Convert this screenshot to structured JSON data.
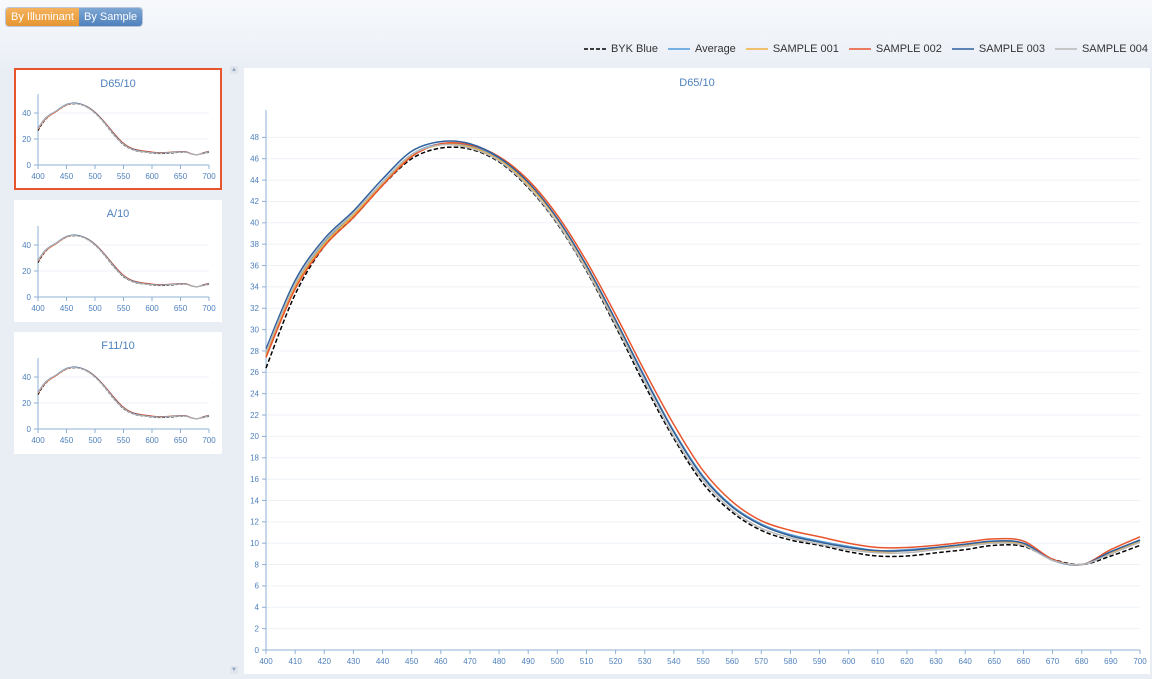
{
  "toolbar": {
    "by_illuminant_label": "By Illuminant",
    "by_sample_label": "By Sample"
  },
  "legend": [
    {
      "name": "BYK Blue",
      "color": "#000000",
      "dash": true
    },
    {
      "name": "Average",
      "color": "#4f9be0",
      "dash": false
    },
    {
      "name": "SAMPLE 001",
      "color": "#f0b040",
      "dash": false
    },
    {
      "name": "SAMPLE 002",
      "color": "#e8542c",
      "dash": false
    },
    {
      "name": "SAMPLE 003",
      "color": "#2d5f9e",
      "dash": false
    },
    {
      "name": "SAMPLE 004",
      "color": "#b8b8b8",
      "dash": false
    }
  ],
  "thumbnails": [
    {
      "title": "D65/10",
      "selected": true
    },
    {
      "title": "A/10",
      "selected": false
    },
    {
      "title": "F11/10",
      "selected": false
    }
  ],
  "thumb_axis": {
    "x_ticks": [
      400,
      450,
      500,
      550,
      600,
      650,
      700
    ],
    "y_ticks": [
      0,
      20,
      40
    ],
    "xlim": [
      400,
      700
    ],
    "ylim": [
      0,
      50
    ]
  },
  "chart_data": {
    "type": "line",
    "title": "D65/10",
    "xlabel": "",
    "ylabel": "",
    "xlim": [
      400,
      700
    ],
    "ylim": [
      0,
      50
    ],
    "x_ticks": [
      400,
      410,
      420,
      430,
      440,
      450,
      460,
      470,
      480,
      490,
      500,
      510,
      520,
      530,
      540,
      550,
      560,
      570,
      580,
      590,
      600,
      610,
      620,
      630,
      640,
      650,
      660,
      670,
      680,
      690,
      700
    ],
    "y_ticks": [
      0,
      2,
      4,
      6,
      8,
      10,
      12,
      14,
      16,
      18,
      20,
      22,
      24,
      26,
      28,
      30,
      32,
      34,
      36,
      38,
      40,
      42,
      44,
      46,
      48
    ],
    "grid": true,
    "x": [
      400,
      410,
      420,
      430,
      440,
      450,
      460,
      470,
      480,
      490,
      500,
      510,
      520,
      530,
      540,
      550,
      560,
      570,
      580,
      590,
      600,
      610,
      620,
      630,
      640,
      650,
      660,
      670,
      680,
      690,
      700
    ],
    "series": [
      {
        "name": "BYK Blue",
        "values": [
          26.4,
          33.3,
          37.8,
          40.5,
          43.5,
          46.0,
          47.0,
          46.9,
          45.7,
          43.3,
          39.9,
          35.5,
          30.3,
          24.8,
          19.8,
          15.6,
          12.9,
          11.2,
          10.3,
          9.8,
          9.2,
          8.8,
          8.8,
          9.1,
          9.4,
          9.8,
          9.7,
          8.5,
          8.0,
          8.8,
          9.8
        ]
      },
      {
        "name": "Average",
        "values": [
          27.8,
          34.2,
          38.2,
          40.8,
          43.8,
          46.4,
          47.4,
          47.2,
          46.0,
          43.7,
          40.4,
          36.0,
          30.9,
          25.6,
          20.5,
          16.3,
          13.5,
          11.8,
          10.8,
          10.2,
          9.7,
          9.3,
          9.4,
          9.6,
          9.9,
          10.2,
          10.0,
          8.4,
          8.0,
          9.2,
          10.3
        ]
      },
      {
        "name": "SAMPLE 001",
        "values": [
          27.6,
          34.0,
          38.0,
          40.7,
          43.6,
          46.3,
          47.3,
          47.1,
          45.9,
          43.6,
          40.3,
          35.9,
          30.8,
          25.5,
          20.4,
          16.2,
          13.4,
          11.7,
          10.7,
          10.1,
          9.6,
          9.2,
          9.3,
          9.5,
          9.8,
          10.1,
          9.9,
          8.4,
          8.0,
          9.1,
          10.2
        ]
      },
      {
        "name": "SAMPLE 002",
        "values": [
          27.4,
          33.8,
          37.8,
          40.5,
          43.5,
          46.2,
          47.4,
          47.3,
          46.2,
          44.0,
          40.7,
          36.4,
          31.4,
          26.1,
          21.1,
          16.8,
          13.9,
          12.1,
          11.2,
          10.6,
          10.0,
          9.6,
          9.6,
          9.8,
          10.1,
          10.4,
          10.2,
          8.5,
          8.0,
          9.4,
          10.6
        ]
      },
      {
        "name": "SAMPLE 003",
        "values": [
          28.2,
          34.6,
          38.5,
          41.1,
          44.1,
          46.7,
          47.6,
          47.4,
          46.1,
          43.8,
          40.4,
          36.0,
          30.9,
          25.5,
          20.4,
          16.2,
          13.4,
          11.7,
          10.7,
          10.1,
          9.6,
          9.3,
          9.3,
          9.6,
          9.9,
          10.2,
          10.0,
          8.4,
          8.0,
          9.2,
          10.3
        ]
      },
      {
        "name": "SAMPLE 004",
        "values": [
          27.9,
          34.3,
          38.3,
          40.9,
          43.8,
          46.4,
          47.3,
          47.0,
          45.8,
          43.4,
          40.0,
          35.6,
          30.5,
          25.1,
          20.0,
          15.9,
          13.1,
          11.4,
          10.5,
          9.9,
          9.4,
          9.1,
          9.1,
          9.4,
          9.7,
          10.0,
          9.8,
          8.4,
          8.0,
          9.0,
          10.1
        ]
      }
    ]
  }
}
